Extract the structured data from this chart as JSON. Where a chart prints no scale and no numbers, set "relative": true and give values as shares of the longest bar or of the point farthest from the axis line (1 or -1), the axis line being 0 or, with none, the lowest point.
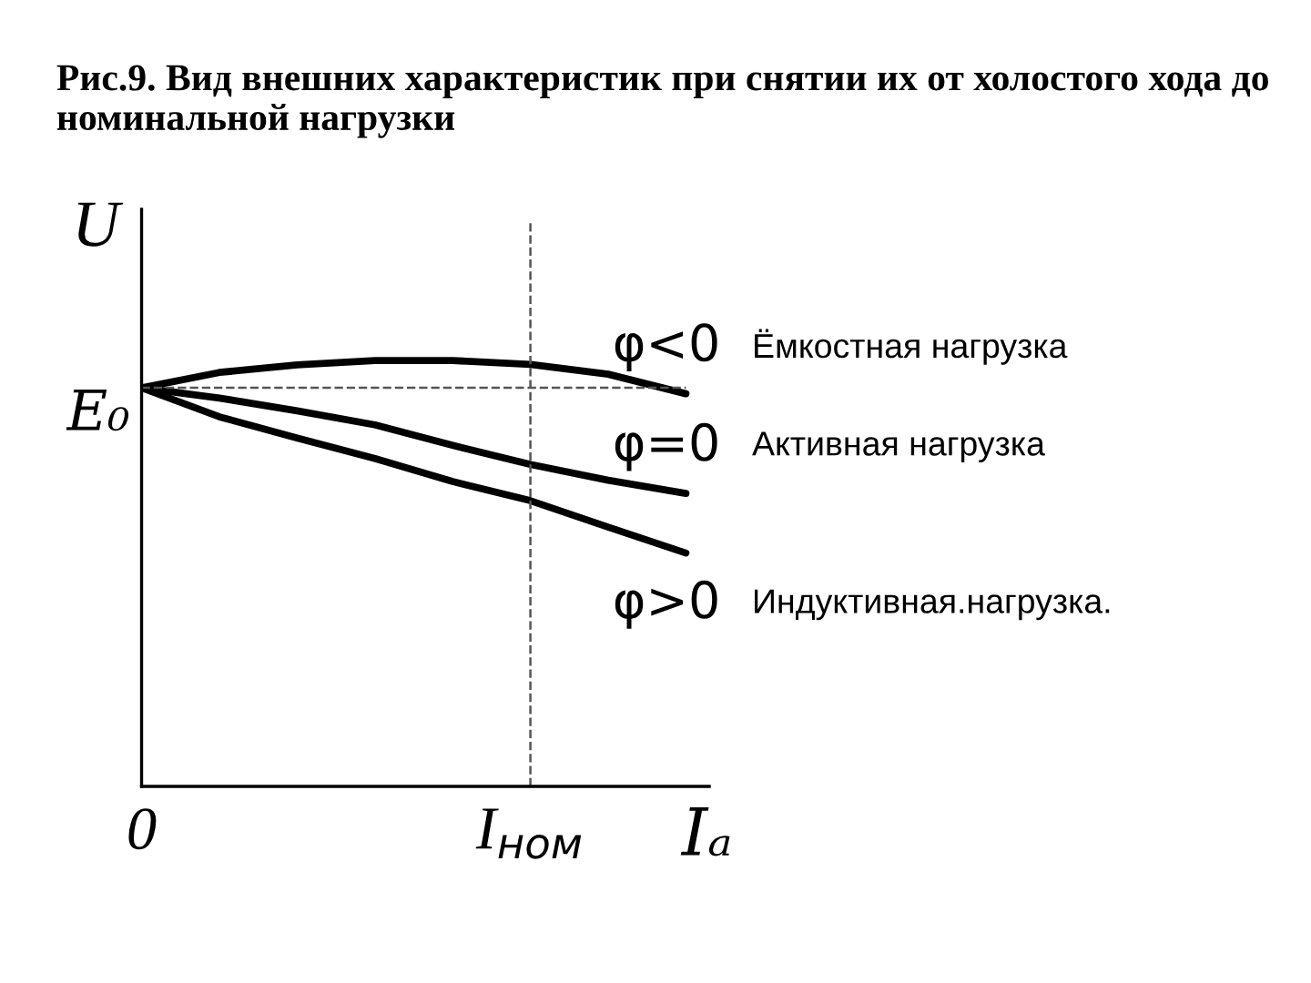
{
  "chart_data": {
    "type": "line",
    "relative": true,
    "title": "Рис.9. Вид внешних характеристик при снятии их от холостого хода до  номинальной нагрузки",
    "xlabel": "Iₐ",
    "ylabel": "U",
    "categories": [
      "0",
      null,
      null,
      null,
      null,
      "I$_{ном}$",
      null,
      null
    ],
    "series": [
      {
        "name": "φ<0",
        "color": "#000000",
        "values": [
          0.936,
          0.972,
          0.99,
          1.0,
          1.0,
          0.991,
          0.968,
          0.922
        ]
      },
      {
        "name": "φ=0",
        "color": "#000000",
        "values": [
          0.936,
          0.912,
          0.882,
          0.849,
          0.801,
          0.756,
          0.719,
          0.688
        ]
      },
      {
        "name": "φ>0",
        "color": "#000000",
        "values": [
          0.936,
          0.868,
          0.818,
          0.77,
          0.716,
          0.671,
          0.609,
          0.548
        ]
      }
    ],
    "ref_lines": [
      {
        "axis": "y",
        "value": 0.936,
        "label": "E₀",
        "line_style": "dashed"
      },
      {
        "axis": "x",
        "value": "I$_{ном}$",
        "line_style": "dashed"
      }
    ],
    "annotations": [
      "Ёмкостная нагрузка",
      "Активная нагрузка",
      "Индуктивная.нагрузка."
    ],
    "legend": false,
    "grid": false,
    "marker": "none",
    "line_style": "solid"
  }
}
